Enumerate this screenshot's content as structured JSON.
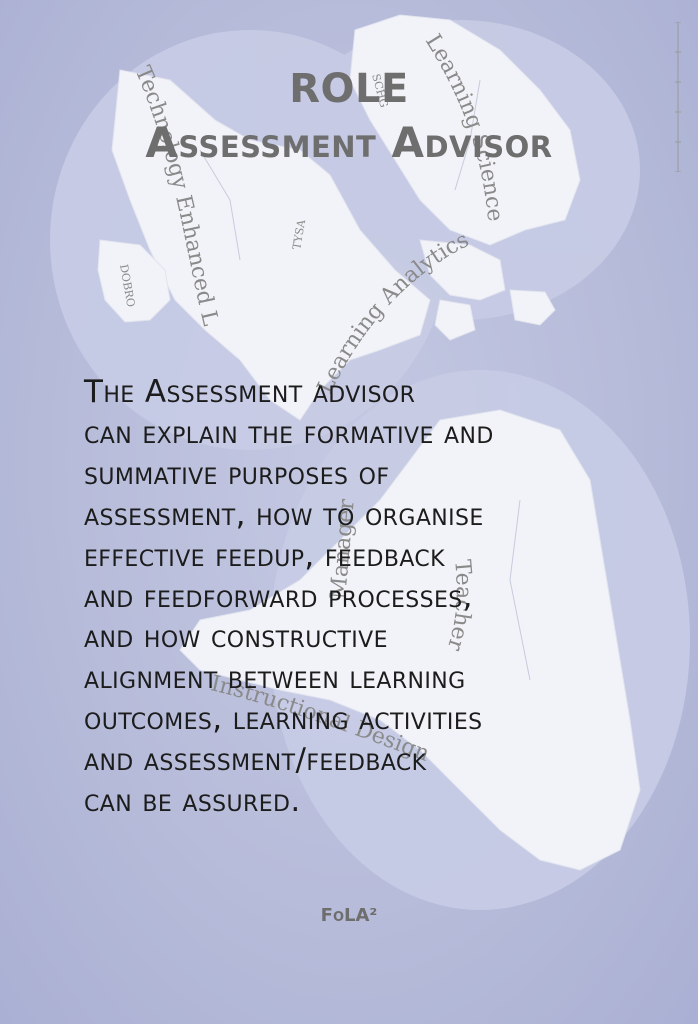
{
  "title": {
    "line1": "ROLE",
    "line2": "Assessment Advisor"
  },
  "body": {
    "lines": [
      "The Assessment advisor",
      "can explain the formative and",
      "summative purposes of",
      "assessment, how to organise",
      "effective feedup, feedback",
      "and feedforward processes,",
      "and how constructive",
      "alignment between learning",
      "outcomes, learning activities",
      "and assessment/feedback",
      "can be assured."
    ]
  },
  "footer": {
    "label": "FoLA²"
  },
  "map_labels": {
    "tel": "Technology Enhanced Learning",
    "analytics": "Learning Analytics",
    "learning_science": "Learning Science",
    "teacher": "Teacher",
    "design": "Instructional Design",
    "manager": "Manager",
    "tysa": "TYSA",
    "dobro": "DOBRO",
    "schg": "SCHG"
  },
  "colors": {
    "background": "#b7bcda",
    "land": "#f2f3f8",
    "title": "#6e6e6e",
    "text": "#1c1c1c"
  }
}
